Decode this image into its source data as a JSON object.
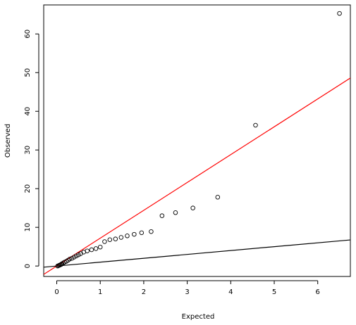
{
  "chart_data": {
    "type": "scatter",
    "title": "",
    "xlabel": "Expected",
    "ylabel": "Observed",
    "xlim": [
      -0.3,
      6.75
    ],
    "ylim": [
      -2.7,
      67.5
    ],
    "x_ticks": [
      0,
      1,
      2,
      3,
      4,
      5,
      6
    ],
    "y_ticks": [
      0,
      10,
      20,
      30,
      40,
      50,
      60
    ],
    "x_tick_labels": [
      "0",
      "1",
      "2",
      "3",
      "4",
      "5",
      "6"
    ],
    "y_tick_labels": [
      "0",
      "10",
      "20",
      "30",
      "40",
      "50",
      "60"
    ],
    "grid": false,
    "legend": "none",
    "point_color": "#000000",
    "series": [
      {
        "points": [
          [
            0.02,
            0.0
          ],
          [
            0.04,
            0.1
          ],
          [
            0.06,
            0.2
          ],
          [
            0.08,
            0.3
          ],
          [
            0.1,
            0.4
          ],
          [
            0.12,
            0.6
          ],
          [
            0.15,
            0.8
          ],
          [
            0.18,
            1.0
          ],
          [
            0.22,
            1.2
          ],
          [
            0.26,
            1.5
          ],
          [
            0.3,
            1.8
          ],
          [
            0.35,
            2.0
          ],
          [
            0.4,
            2.3
          ],
          [
            0.45,
            2.6
          ],
          [
            0.5,
            2.9
          ],
          [
            0.55,
            3.2
          ],
          [
            0.62,
            3.6
          ],
          [
            0.7,
            3.9
          ],
          [
            0.8,
            4.2
          ],
          [
            0.9,
            4.5
          ],
          [
            1.0,
            4.9
          ],
          [
            1.1,
            6.3
          ],
          [
            1.22,
            6.8
          ],
          [
            1.35,
            7.0
          ],
          [
            1.48,
            7.4
          ],
          [
            1.62,
            7.8
          ],
          [
            1.78,
            8.2
          ],
          [
            1.95,
            8.6
          ],
          [
            2.17,
            8.9
          ],
          [
            2.42,
            13.0
          ],
          [
            2.73,
            13.8
          ],
          [
            3.13,
            15.0
          ],
          [
            3.7,
            17.8
          ],
          [
            4.57,
            36.4
          ],
          [
            6.5,
            65.3
          ]
        ]
      }
    ],
    "lines": [
      {
        "intercept": 0.0,
        "slope": 1.0,
        "color": "#000000"
      },
      {
        "intercept": 0.0,
        "slope": 7.2,
        "color": "#ff0000"
      }
    ]
  }
}
